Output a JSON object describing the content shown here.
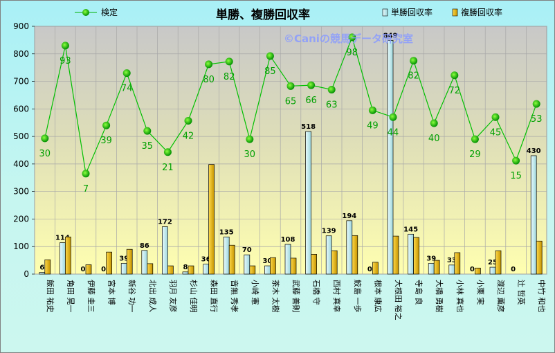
{
  "chart_data": {
    "type": "bar",
    "title": "単勝、複勝回収率",
    "watermark": "©Caniの競馬データ研究室",
    "ylim": [
      0,
      900
    ],
    "yticks": [
      0,
      100,
      200,
      300,
      400,
      500,
      600,
      700,
      800,
      900
    ],
    "grid": true,
    "legend": "top",
    "categories": [
      "飯田 祐史",
      "角田 晃一",
      "伊藤 圭三",
      "宮本 博",
      "新谷 功一",
      "北出 成人",
      "羽月 友彦",
      "杉山 佳明",
      "森田 直行",
      "音無 秀孝",
      "小崎 憲",
      "茶木 太樹",
      "武藤 善則",
      "石橋 守",
      "西村 真幸",
      "鮫島 一歩",
      "根本 康広",
      "大根田 裕之",
      "寺島 良",
      "大橋 勇樹",
      "小林 真也",
      "小栗 実",
      "渡辺 薫彦",
      "辻 哲英",
      "中竹 和也"
    ],
    "series": [
      {
        "name": "単勝回収率",
        "color": "#cdeef2",
        "values": [
          6,
          114,
          0,
          0,
          39,
          86,
          172,
          8,
          36,
          135,
          70,
          30,
          108,
          518,
          139,
          194,
          0,
          849,
          145,
          39,
          33,
          0,
          25,
          0,
          430
        ]
      },
      {
        "name": "複勝回収率",
        "color": "#e6b800",
        "values": [
          52,
          135,
          34,
          80,
          90,
          38,
          30,
          30,
          398,
          105,
          30,
          60,
          58,
          72,
          85,
          140,
          43,
          138,
          133,
          50,
          78,
          22,
          85,
          0,
          120
        ]
      },
      {
        "name": "検定",
        "type": "line",
        "color": "#00b000",
        "values": [
          493,
          830,
          365,
          540,
          730,
          520,
          443,
          557,
          762,
          772,
          490,
          792,
          683,
          686,
          670,
          860,
          595,
          570,
          775,
          548,
          722,
          490,
          570,
          412,
          618
        ],
        "labels": [
          30,
          93,
          7,
          39,
          74,
          35,
          21,
          42,
          80,
          82,
          30,
          85,
          65,
          66,
          63,
          98,
          49,
          44,
          82,
          40,
          72,
          29,
          45,
          15,
          53
        ]
      }
    ]
  }
}
